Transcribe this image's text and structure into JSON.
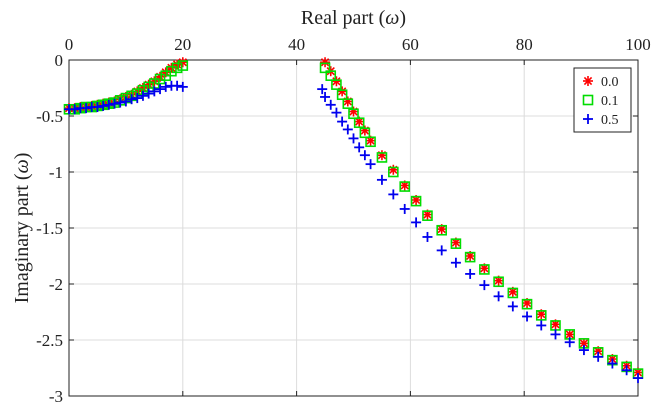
{
  "chart_data": {
    "type": "scatter",
    "xlabel_parts": [
      "Real part (",
      "ω",
      ")"
    ],
    "ylabel_parts": [
      "Imaginary part (",
      "ω",
      ")"
    ],
    "xlim": [
      0,
      100
    ],
    "ylim": [
      -3,
      0
    ],
    "x_axis_position": "top",
    "grid": true,
    "legend_position": "top-right",
    "xticks": [
      0,
      20,
      40,
      60,
      80,
      100
    ],
    "xtick_labels": [
      "0",
      "20",
      "40",
      "60",
      "80",
      "100"
    ],
    "yticks": [
      0,
      -0.5,
      -1,
      -1.5,
      -2,
      -2.5,
      -3
    ],
    "ytick_labels": [
      "0",
      "-0.5",
      "-1",
      "-1.5",
      "-2",
      "-2.5",
      "-3"
    ],
    "series": [
      {
        "name": "0.0",
        "marker": "asterisk",
        "color": "#ff0000",
        "points": [
          [
            0,
            -0.43
          ],
          [
            1,
            -0.43
          ],
          [
            2,
            -0.42
          ],
          [
            3,
            -0.42
          ],
          [
            4,
            -0.41
          ],
          [
            5,
            -0.4
          ],
          [
            6,
            -0.39
          ],
          [
            7,
            -0.38
          ],
          [
            8,
            -0.37
          ],
          [
            9,
            -0.35
          ],
          [
            10,
            -0.33
          ],
          [
            11,
            -0.31
          ],
          [
            12,
            -0.28
          ],
          [
            13,
            -0.25
          ],
          [
            14,
            -0.22
          ],
          [
            15,
            -0.19
          ],
          [
            16,
            -0.15
          ],
          [
            17,
            -0.11
          ],
          [
            18,
            -0.07
          ],
          [
            19,
            -0.04
          ],
          [
            20,
            -0.02
          ],
          [
            45,
            -0.02
          ],
          [
            46,
            -0.1
          ],
          [
            47,
            -0.19
          ],
          [
            48,
            -0.28
          ],
          [
            49,
            -0.37
          ],
          [
            50,
            -0.46
          ],
          [
            51,
            -0.55
          ],
          [
            52,
            -0.63
          ],
          [
            53,
            -0.72
          ],
          [
            55,
            -0.85
          ],
          [
            57,
            -0.98
          ],
          [
            59,
            -1.12
          ],
          [
            61,
            -1.25
          ],
          [
            63,
            -1.38
          ],
          [
            65.5,
            -1.51
          ],
          [
            68,
            -1.63
          ],
          [
            70.5,
            -1.75
          ],
          [
            73,
            -1.86
          ],
          [
            75.5,
            -1.97
          ],
          [
            78,
            -2.07
          ],
          [
            80.5,
            -2.17
          ],
          [
            83,
            -2.27
          ],
          [
            85.5,
            -2.36
          ],
          [
            88,
            -2.45
          ],
          [
            90.5,
            -2.53
          ],
          [
            93,
            -2.6
          ],
          [
            95.5,
            -2.67
          ],
          [
            98,
            -2.73
          ],
          [
            100,
            -2.79
          ]
        ]
      },
      {
        "name": "0.1",
        "marker": "square",
        "color": "#00dd00",
        "points": [
          [
            0,
            -0.44
          ],
          [
            1,
            -0.44
          ],
          [
            2,
            -0.43
          ],
          [
            3,
            -0.42
          ],
          [
            4,
            -0.42
          ],
          [
            5,
            -0.41
          ],
          [
            6,
            -0.4
          ],
          [
            7,
            -0.39
          ],
          [
            8,
            -0.38
          ],
          [
            9,
            -0.36
          ],
          [
            10,
            -0.34
          ],
          [
            11,
            -0.32
          ],
          [
            12,
            -0.3
          ],
          [
            13,
            -0.27
          ],
          [
            14,
            -0.24
          ],
          [
            15,
            -0.21
          ],
          [
            16,
            -0.17
          ],
          [
            17,
            -0.14
          ],
          [
            18,
            -0.1
          ],
          [
            19,
            -0.07
          ],
          [
            20,
            -0.05
          ],
          [
            45,
            -0.07
          ],
          [
            46,
            -0.14
          ],
          [
            47,
            -0.22
          ],
          [
            48,
            -0.31
          ],
          [
            49,
            -0.39
          ],
          [
            50,
            -0.48
          ],
          [
            51,
            -0.56
          ],
          [
            52,
            -0.65
          ],
          [
            53,
            -0.73
          ],
          [
            55,
            -0.87
          ],
          [
            57,
            -1.0
          ],
          [
            59,
            -1.13
          ],
          [
            61,
            -1.26
          ],
          [
            63,
            -1.39
          ],
          [
            65.5,
            -1.52
          ],
          [
            68,
            -1.64
          ],
          [
            70.5,
            -1.76
          ],
          [
            73,
            -1.87
          ],
          [
            75.5,
            -1.98
          ],
          [
            78,
            -2.08
          ],
          [
            80.5,
            -2.18
          ],
          [
            83,
            -2.28
          ],
          [
            85.5,
            -2.37
          ],
          [
            88,
            -2.45
          ],
          [
            90.5,
            -2.53
          ],
          [
            93,
            -2.61
          ],
          [
            95.5,
            -2.68
          ],
          [
            98,
            -2.74
          ],
          [
            100,
            -2.8
          ]
        ]
      },
      {
        "name": "0.5",
        "marker": "plus",
        "color": "#0000ee",
        "points": [
          [
            0,
            -0.44
          ],
          [
            1,
            -0.44
          ],
          [
            2,
            -0.43
          ],
          [
            3,
            -0.43
          ],
          [
            4,
            -0.42
          ],
          [
            5,
            -0.42
          ],
          [
            6,
            -0.41
          ],
          [
            7,
            -0.4
          ],
          [
            8,
            -0.39
          ],
          [
            9,
            -0.38
          ],
          [
            10,
            -0.37
          ],
          [
            11,
            -0.35
          ],
          [
            12,
            -0.34
          ],
          [
            13,
            -0.32
          ],
          [
            14,
            -0.3
          ],
          [
            15,
            -0.28
          ],
          [
            16,
            -0.26
          ],
          [
            17,
            -0.24
          ],
          [
            18,
            -0.23
          ],
          [
            19,
            -0.23
          ],
          [
            20,
            -0.24
          ],
          [
            44.5,
            -0.26
          ],
          [
            45,
            -0.33
          ],
          [
            46,
            -0.4
          ],
          [
            47,
            -0.47
          ],
          [
            48,
            -0.55
          ],
          [
            49,
            -0.62
          ],
          [
            50,
            -0.7
          ],
          [
            51,
            -0.78
          ],
          [
            52,
            -0.85
          ],
          [
            53,
            -0.93
          ],
          [
            55,
            -1.07
          ],
          [
            57,
            -1.2
          ],
          [
            59,
            -1.33
          ],
          [
            61,
            -1.45
          ],
          [
            63,
            -1.58
          ],
          [
            65.5,
            -1.7
          ],
          [
            68,
            -1.81
          ],
          [
            70.5,
            -1.91
          ],
          [
            73,
            -2.01
          ],
          [
            75.5,
            -2.11
          ],
          [
            78,
            -2.2
          ],
          [
            80.5,
            -2.29
          ],
          [
            83,
            -2.37
          ],
          [
            85.5,
            -2.45
          ],
          [
            88,
            -2.52
          ],
          [
            90.5,
            -2.59
          ],
          [
            93,
            -2.65
          ],
          [
            95.5,
            -2.71
          ],
          [
            98,
            -2.77
          ],
          [
            100,
            -2.84
          ]
        ]
      }
    ]
  }
}
